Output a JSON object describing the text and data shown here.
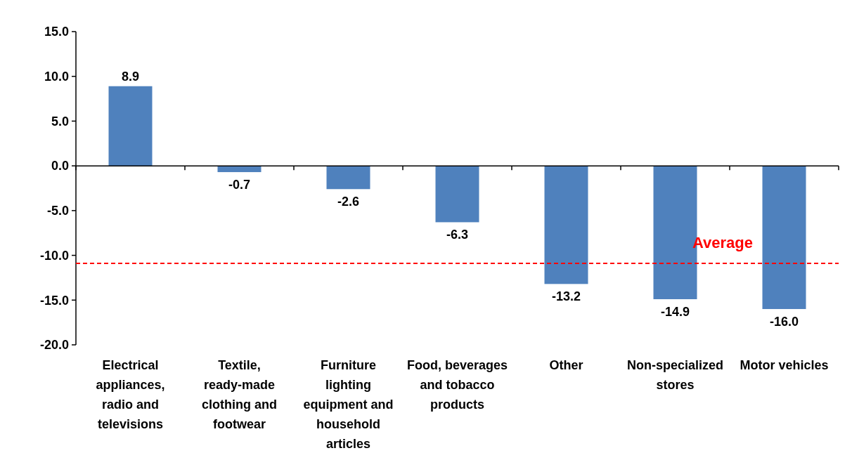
{
  "chart_data": {
    "type": "bar",
    "categories": [
      "Electrical appliances, radio and televisions",
      "Textile, ready-made clothing and footwear",
      "Furniture lighting equipment and household articles",
      "Food, beverages and tobacco products",
      "Other",
      "Non-specialized stores",
      "Motor vehicles"
    ],
    "values": [
      8.9,
      -0.7,
      -2.6,
      -6.3,
      -13.2,
      -14.9,
      -16.0
    ],
    "color": "#4f81bd",
    "ylim": [
      -20,
      15
    ],
    "yticks": [
      {
        "value": -20,
        "label": "-20.0"
      },
      {
        "value": -15,
        "label": "-15.0"
      },
      {
        "value": -10,
        "label": "-10.0"
      },
      {
        "value": -5,
        "label": "-5.0"
      },
      {
        "value": 0,
        "label": "0.0"
      },
      {
        "value": 5,
        "label": "5.0"
      },
      {
        "value": 10,
        "label": "10.0"
      },
      {
        "value": 15,
        "label": "15.0"
      }
    ],
    "value_labels": [
      "8.9",
      "-0.7",
      "-2.6",
      "-6.3",
      "-13.2",
      "-14.9",
      "-16.0"
    ],
    "ref_lines": [
      {
        "axis": "y",
        "value": -10.9,
        "label": "Average",
        "color": "#ff0000",
        "line_style": "dashed"
      }
    ]
  }
}
